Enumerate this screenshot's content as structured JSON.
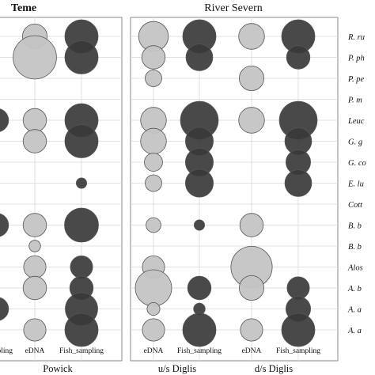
{
  "chart_data": {
    "type": "scatter",
    "description_style": "bubble plot",
    "site_titles": [
      {
        "text": "Teme"
      },
      {
        "text": "River Severn"
      }
    ],
    "site_labels": [
      "Powick",
      "u/s Diglis",
      "d/s Diglis"
    ],
    "columns": [
      {
        "label": "…pling",
        "site": "Teme"
      },
      {
        "label": "eDNA",
        "site": "Powick"
      },
      {
        "label": "Fish_sampling",
        "site": "Powick"
      },
      {
        "label": "eDNA",
        "site": "u/s Diglis"
      },
      {
        "label": "Fish_sampling",
        "site": "u/s Diglis"
      },
      {
        "label": "eDNA",
        "site": "d/s Diglis"
      },
      {
        "label": "Fish_sampling",
        "site": "d/s Diglis"
      }
    ],
    "species": [
      "R. ru",
      "P. ph",
      "P. pe",
      "P. m",
      "Leuc",
      "G. g",
      "G. co",
      "E. lu",
      "Cott",
      "B. b",
      "B. b",
      "Alos",
      "A. b",
      "A. a",
      "A. a"
    ],
    "colors": {
      "edna": "#c4c4c4",
      "fish": "#3a3a3a",
      "stroke": "#555555",
      "grid": "#d8d8d8"
    },
    "bubbles": [
      {
        "col": 1,
        "row": 0,
        "v": 0.55,
        "m": "edna"
      },
      {
        "col": 2,
        "row": 0,
        "v": 1.0,
        "m": "fish"
      },
      {
        "col": 3,
        "row": 0,
        "v": 0.8,
        "m": "edna"
      },
      {
        "col": 4,
        "row": 0,
        "v": 1.0,
        "m": "fish"
      },
      {
        "col": 5,
        "row": 0,
        "v": 0.6,
        "m": "edna"
      },
      {
        "col": 6,
        "row": 0,
        "v": 1.0,
        "m": "fish"
      },
      {
        "col": 1,
        "row": 1,
        "v": 1.7,
        "m": "edna"
      },
      {
        "col": 2,
        "row": 1,
        "v": 1.0,
        "m": "fish"
      },
      {
        "col": 3,
        "row": 1,
        "v": 0.5,
        "m": "edna"
      },
      {
        "col": 4,
        "row": 1,
        "v": 0.65,
        "m": "fish"
      },
      {
        "col": 6,
        "row": 1,
        "v": 0.5,
        "m": "fish"
      },
      {
        "col": 3,
        "row": 2,
        "v": 0.25,
        "m": "edna"
      },
      {
        "col": 5,
        "row": 2,
        "v": 0.55,
        "m": "edna"
      },
      {
        "col": 0,
        "row": 4,
        "v": 0.5,
        "m": "fish"
      },
      {
        "col": 1,
        "row": 4,
        "v": 0.5,
        "m": "edna"
      },
      {
        "col": 2,
        "row": 4,
        "v": 1.0,
        "m": "fish"
      },
      {
        "col": 3,
        "row": 4,
        "v": 0.6,
        "m": "edna"
      },
      {
        "col": 4,
        "row": 4,
        "v": 1.3,
        "m": "fish"
      },
      {
        "col": 5,
        "row": 4,
        "v": 0.6,
        "m": "edna"
      },
      {
        "col": 6,
        "row": 4,
        "v": 1.3,
        "m": "fish"
      },
      {
        "col": 1,
        "row": 5,
        "v": 0.5,
        "m": "edna"
      },
      {
        "col": 2,
        "row": 5,
        "v": 1.0,
        "m": "fish"
      },
      {
        "col": 3,
        "row": 5,
        "v": 0.6,
        "m": "edna"
      },
      {
        "col": 4,
        "row": 5,
        "v": 0.7,
        "m": "fish"
      },
      {
        "col": 6,
        "row": 5,
        "v": 0.65,
        "m": "fish"
      },
      {
        "col": 3,
        "row": 6,
        "v": 0.3,
        "m": "edna"
      },
      {
        "col": 4,
        "row": 6,
        "v": 0.7,
        "m": "fish"
      },
      {
        "col": 6,
        "row": 6,
        "v": 0.55,
        "m": "fish"
      },
      {
        "col": 2,
        "row": 7,
        "v": 0.1,
        "m": "fish"
      },
      {
        "col": 3,
        "row": 7,
        "v": 0.25,
        "m": "edna"
      },
      {
        "col": 4,
        "row": 7,
        "v": 0.7,
        "m": "fish"
      },
      {
        "col": 6,
        "row": 7,
        "v": 0.65,
        "m": "fish"
      },
      {
        "col": 0,
        "row": 9,
        "v": 0.5,
        "m": "fish"
      },
      {
        "col": 1,
        "row": 9,
        "v": 0.5,
        "m": "edna"
      },
      {
        "col": 2,
        "row": 9,
        "v": 1.05,
        "m": "fish"
      },
      {
        "col": 3,
        "row": 9,
        "v": 0.2,
        "m": "edna"
      },
      {
        "col": 4,
        "row": 9,
        "v": 0.1,
        "m": "fish"
      },
      {
        "col": 5,
        "row": 9,
        "v": 0.5,
        "m": "edna"
      },
      {
        "col": 1,
        "row": 10,
        "v": 0.12,
        "m": "edna"
      },
      {
        "col": 1,
        "row": 11,
        "v": 0.45,
        "m": "edna"
      },
      {
        "col": 2,
        "row": 11,
        "v": 0.45,
        "m": "fish"
      },
      {
        "col": 3,
        "row": 11,
        "v": 0.45,
        "m": "edna"
      },
      {
        "col": 5,
        "row": 11,
        "v": 1.55,
        "m": "edna"
      },
      {
        "col": 1,
        "row": 12,
        "v": 0.5,
        "m": "edna"
      },
      {
        "col": 2,
        "row": 12,
        "v": 0.5,
        "m": "fish"
      },
      {
        "col": 3,
        "row": 12,
        "v": 1.2,
        "m": "edna"
      },
      {
        "col": 4,
        "row": 12,
        "v": 0.5,
        "m": "fish"
      },
      {
        "col": 5,
        "row": 12,
        "v": 0.55,
        "m": "edna"
      },
      {
        "col": 6,
        "row": 12,
        "v": 0.45,
        "m": "fish"
      },
      {
        "col": 0,
        "row": 13,
        "v": 0.5,
        "m": "fish"
      },
      {
        "col": 2,
        "row": 13,
        "v": 0.95,
        "m": "fish"
      },
      {
        "col": 3,
        "row": 13,
        "v": 0.15,
        "m": "edna"
      },
      {
        "col": 4,
        "row": 13,
        "v": 0.12,
        "m": "fish"
      },
      {
        "col": 6,
        "row": 13,
        "v": 0.55,
        "m": "fish"
      },
      {
        "col": 1,
        "row": 14,
        "v": 0.45,
        "m": "edna"
      },
      {
        "col": 2,
        "row": 14,
        "v": 1.0,
        "m": "fish"
      },
      {
        "col": 3,
        "row": 14,
        "v": 0.45,
        "m": "edna"
      },
      {
        "col": 4,
        "row": 14,
        "v": 1.0,
        "m": "fish"
      },
      {
        "col": 5,
        "row": 14,
        "v": 0.45,
        "m": "edna"
      },
      {
        "col": 6,
        "row": 14,
        "v": 1.0,
        "m": "fish"
      }
    ]
  }
}
